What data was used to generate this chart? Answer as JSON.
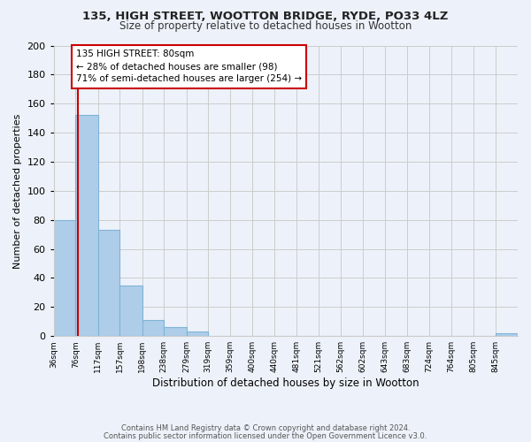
{
  "title1": "135, HIGH STREET, WOOTTON BRIDGE, RYDE, PO33 4LZ",
  "title2": "Size of property relative to detached houses in Wootton",
  "xlabel": "Distribution of detached houses by size in Wootton",
  "ylabel": "Number of detached properties",
  "footer1": "Contains HM Land Registry data © Crown copyright and database right 2024.",
  "footer2": "Contains public sector information licensed under the Open Government Licence v3.0.",
  "bin_labels": [
    "36sqm",
    "76sqm",
    "117sqm",
    "157sqm",
    "198sqm",
    "238sqm",
    "279sqm",
    "319sqm",
    "359sqm",
    "400sqm",
    "440sqm",
    "481sqm",
    "521sqm",
    "562sqm",
    "602sqm",
    "643sqm",
    "683sqm",
    "724sqm",
    "764sqm",
    "805sqm",
    "845sqm"
  ],
  "bar_heights": [
    80,
    152,
    73,
    35,
    11,
    6,
    3,
    0,
    0,
    0,
    0,
    0,
    0,
    0,
    0,
    0,
    0,
    0,
    0,
    0,
    2
  ],
  "bar_color": "#aecde8",
  "bar_edge_color": "#7fb3d9",
  "property_line_x": 80,
  "property_line_color": "#cc0000",
  "annotation_title": "135 HIGH STREET: 80sqm",
  "annotation_line1": "← 28% of detached houses are smaller (98)",
  "annotation_line2": "71% of semi-detached houses are larger (254) →",
  "annotation_box_color": "#ffffff",
  "annotation_box_edge": "#cc0000",
  "ylim": [
    0,
    200
  ],
  "yticks": [
    0,
    20,
    40,
    60,
    80,
    100,
    120,
    140,
    160,
    180,
    200
  ],
  "bin_edges": [
    36,
    76,
    117,
    157,
    198,
    238,
    279,
    319,
    359,
    400,
    440,
    481,
    521,
    562,
    602,
    643,
    683,
    724,
    764,
    805,
    845,
    886
  ],
  "grid_color": "#cccccc",
  "bg_color": "#edf2fa"
}
